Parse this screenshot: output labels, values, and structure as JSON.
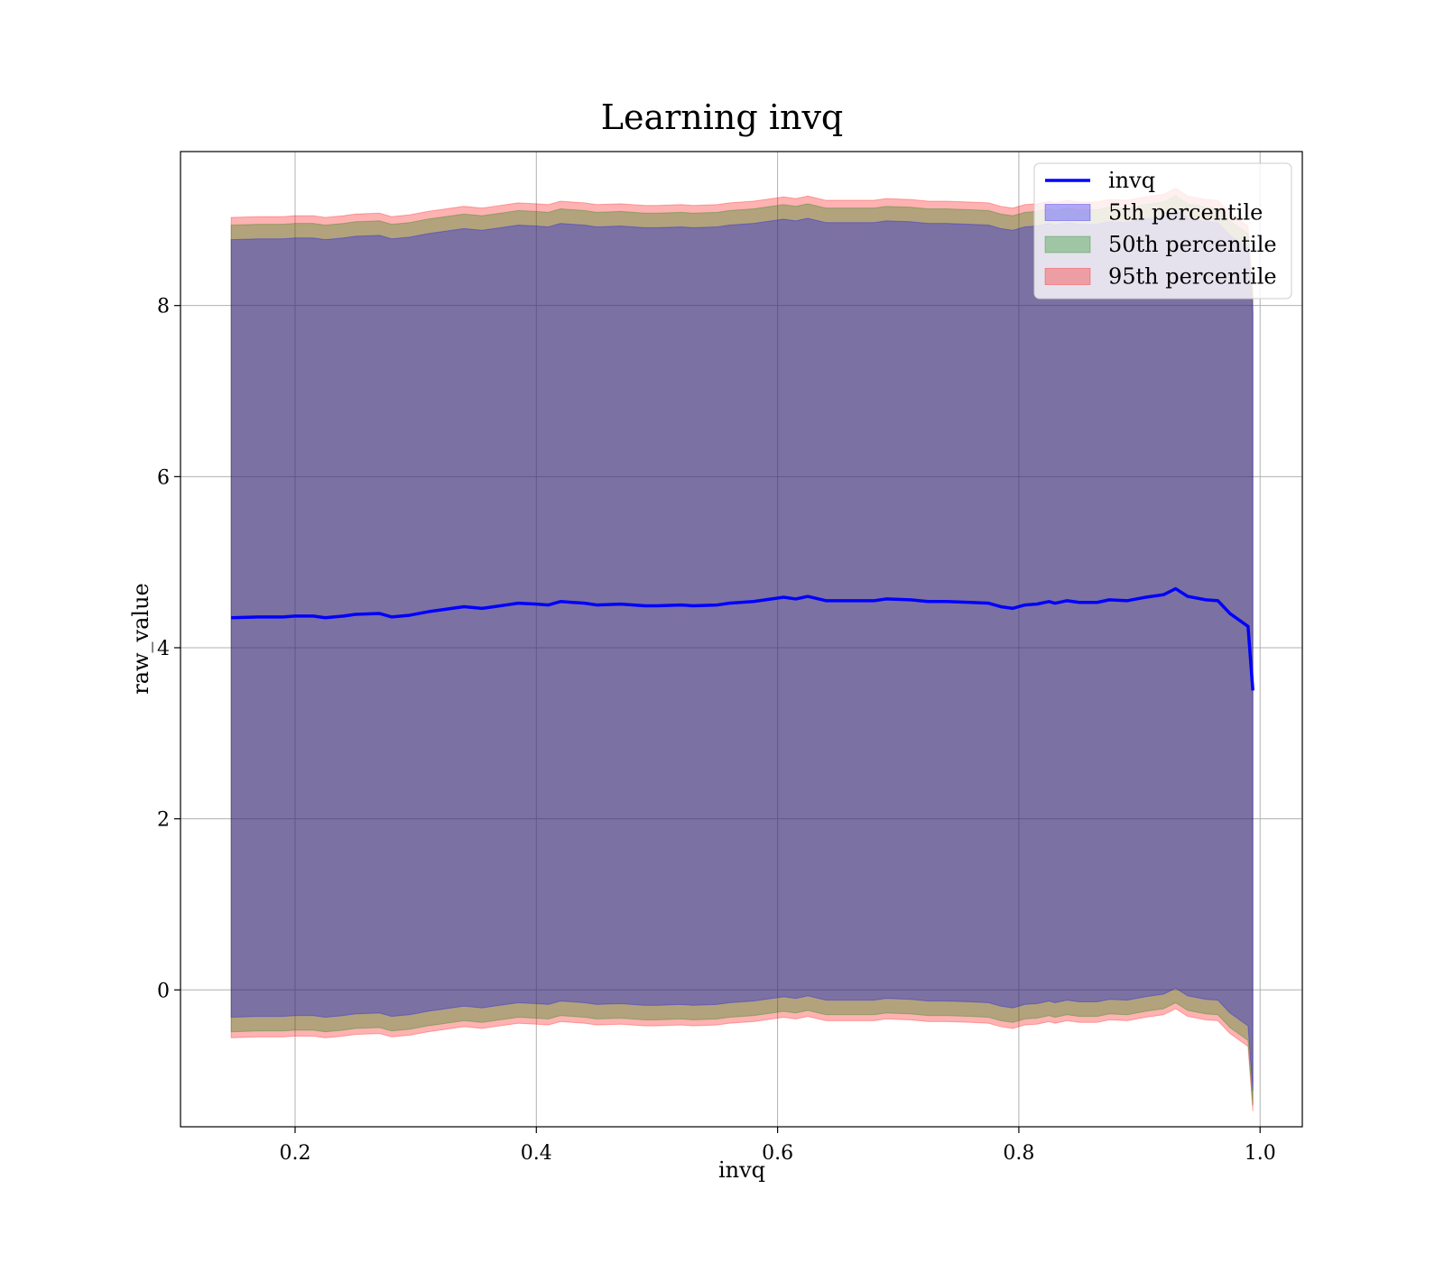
{
  "chart_data": {
    "type": "area",
    "title": "Learning invq",
    "xlabel": "invq",
    "ylabel": "raw_value",
    "xlim": [
      0.105,
      1.035
    ],
    "ylim": [
      -1.6,
      9.8
    ],
    "xticks": [
      0.2,
      0.4,
      0.6,
      0.8,
      1.0
    ],
    "xtick_labels": [
      "0.2",
      "0.4",
      "0.6",
      "0.8",
      "1.0"
    ],
    "yticks": [
      0,
      2,
      4,
      6,
      8
    ],
    "ytick_labels": [
      "0",
      "2",
      "4",
      "6",
      "8"
    ],
    "grid": true,
    "legend_position": "top-right",
    "x": [
      0.147,
      0.17,
      0.19,
      0.2,
      0.215,
      0.225,
      0.24,
      0.25,
      0.27,
      0.28,
      0.295,
      0.31,
      0.32,
      0.34,
      0.355,
      0.365,
      0.375,
      0.385,
      0.4,
      0.41,
      0.42,
      0.44,
      0.45,
      0.47,
      0.49,
      0.5,
      0.52,
      0.53,
      0.55,
      0.56,
      0.58,
      0.59,
      0.605,
      0.615,
      0.625,
      0.64,
      0.66,
      0.68,
      0.69,
      0.71,
      0.725,
      0.74,
      0.76,
      0.775,
      0.785,
      0.795,
      0.805,
      0.815,
      0.825,
      0.83,
      0.84,
      0.85,
      0.865,
      0.875,
      0.89,
      0.905,
      0.92,
      0.93,
      0.94,
      0.955,
      0.965,
      0.975,
      0.99,
      0.994
    ],
    "series": [
      {
        "name": "invq",
        "color": "#0000ff",
        "values": [
          4.35,
          4.36,
          4.36,
          4.37,
          4.37,
          4.35,
          4.37,
          4.39,
          4.4,
          4.36,
          4.38,
          4.42,
          4.44,
          4.48,
          4.46,
          4.48,
          4.5,
          4.52,
          4.51,
          4.5,
          4.54,
          4.52,
          4.5,
          4.51,
          4.49,
          4.49,
          4.5,
          4.49,
          4.5,
          4.52,
          4.54,
          4.56,
          4.59,
          4.57,
          4.6,
          4.55,
          4.55,
          4.55,
          4.57,
          4.56,
          4.54,
          4.54,
          4.53,
          4.52,
          4.48,
          4.46,
          4.5,
          4.51,
          4.54,
          4.52,
          4.55,
          4.53,
          4.53,
          4.56,
          4.55,
          4.59,
          4.62,
          4.69,
          4.6,
          4.56,
          4.55,
          4.4,
          4.25,
          3.5
        ]
      },
      {
        "name": "5th percentile",
        "color": "#0000ff",
        "offset_low": 0.08,
        "offset_high": 0.08
      },
      {
        "name": "50th percentile",
        "color": "#008000",
        "offset_low": 0.25,
        "offset_high": 0.25
      },
      {
        "name": "95th percentile",
        "color": "#ff0000",
        "offset_low": 0.32,
        "offset_high": 0.34
      }
    ],
    "band_lower": [
      -0.24,
      -0.23,
      -0.23,
      -0.22,
      -0.22,
      -0.24,
      -0.22,
      -0.2,
      -0.19,
      -0.23,
      -0.21,
      -0.17,
      -0.15,
      -0.11,
      -0.13,
      -0.11,
      -0.09,
      -0.07,
      -0.08,
      -0.09,
      -0.05,
      -0.07,
      -0.09,
      -0.08,
      -0.1,
      -0.1,
      -0.09,
      -0.1,
      -0.09,
      -0.07,
      -0.05,
      -0.03,
      0.0,
      -0.02,
      0.01,
      -0.04,
      -0.04,
      -0.04,
      -0.02,
      -0.03,
      -0.05,
      -0.05,
      -0.06,
      -0.07,
      -0.11,
      -0.13,
      -0.09,
      -0.08,
      -0.05,
      -0.07,
      -0.04,
      -0.06,
      -0.06,
      -0.03,
      -0.04,
      0.0,
      0.03,
      0.1,
      0.01,
      -0.03,
      -0.04,
      -0.19,
      -0.34,
      -1.1
    ],
    "band_upper": [
      8.69,
      8.7,
      8.7,
      8.71,
      8.71,
      8.69,
      8.71,
      8.73,
      8.74,
      8.7,
      8.72,
      8.76,
      8.78,
      8.82,
      8.8,
      8.82,
      8.84,
      8.86,
      8.85,
      8.84,
      8.88,
      8.86,
      8.84,
      8.85,
      8.83,
      8.83,
      8.84,
      8.83,
      8.84,
      8.86,
      8.88,
      8.9,
      8.93,
      8.91,
      8.94,
      8.89,
      8.89,
      8.89,
      8.91,
      8.9,
      8.88,
      8.88,
      8.87,
      8.86,
      8.82,
      8.8,
      8.84,
      8.85,
      8.88,
      8.86,
      8.89,
      8.87,
      8.87,
      8.9,
      8.89,
      8.93,
      8.96,
      9.03,
      8.94,
      8.9,
      8.89,
      8.74,
      8.59,
      7.84
    ]
  }
}
